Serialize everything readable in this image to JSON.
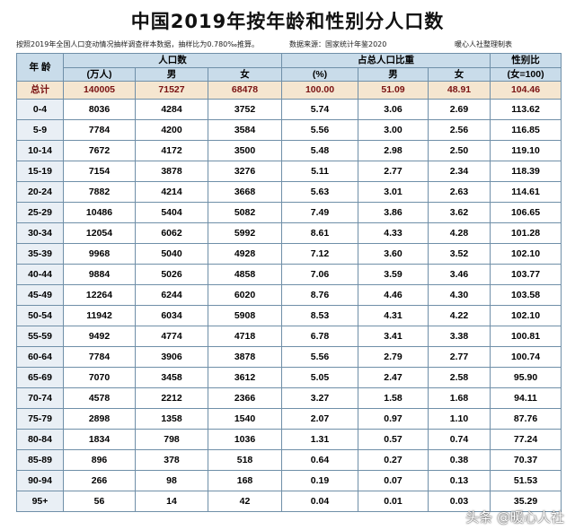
{
  "title": "中国2019年按年龄和性别分人口数",
  "note": "按照2019年全国人口变动情况抽样调查样本数据，抽样比为0.780‰推算。",
  "source": "数据来源：国家统计年鉴2020",
  "author": "暖心人社整理制表",
  "watermark": "头条 @暖心人社",
  "header": {
    "age": "年  龄",
    "population": "人口数",
    "share": "占总人口比重",
    "ratio": "性别比",
    "pop_unit": "(万人)",
    "male": "男",
    "female": "女",
    "share_unit": "(%)",
    "ratio_unit": "(女=100)"
  },
  "total": {
    "age": "总计",
    "pop": "140005",
    "male": "71527",
    "female": "68478",
    "share": "100.00",
    "male_share": "51.09",
    "female_share": "48.91",
    "ratio": "104.46"
  },
  "rows": [
    {
      "age": "0-4",
      "pop": "8036",
      "male": "4284",
      "female": "3752",
      "share": "5.74",
      "male_share": "3.06",
      "female_share": "2.69",
      "ratio": "113.62"
    },
    {
      "age": "5-9",
      "pop": "7784",
      "male": "4200",
      "female": "3584",
      "share": "5.56",
      "male_share": "3.00",
      "female_share": "2.56",
      "ratio": "116.85"
    },
    {
      "age": "10-14",
      "pop": "7672",
      "male": "4172",
      "female": "3500",
      "share": "5.48",
      "male_share": "2.98",
      "female_share": "2.50",
      "ratio": "119.10"
    },
    {
      "age": "15-19",
      "pop": "7154",
      "male": "3878",
      "female": "3276",
      "share": "5.11",
      "male_share": "2.77",
      "female_share": "2.34",
      "ratio": "118.39"
    },
    {
      "age": "20-24",
      "pop": "7882",
      "male": "4214",
      "female": "3668",
      "share": "5.63",
      "male_share": "3.01",
      "female_share": "2.63",
      "ratio": "114.61"
    },
    {
      "age": "25-29",
      "pop": "10486",
      "male": "5404",
      "female": "5082",
      "share": "7.49",
      "male_share": "3.86",
      "female_share": "3.62",
      "ratio": "106.65"
    },
    {
      "age": "30-34",
      "pop": "12054",
      "male": "6062",
      "female": "5992",
      "share": "8.61",
      "male_share": "4.33",
      "female_share": "4.28",
      "ratio": "101.28"
    },
    {
      "age": "35-39",
      "pop": "9968",
      "male": "5040",
      "female": "4928",
      "share": "7.12",
      "male_share": "3.60",
      "female_share": "3.52",
      "ratio": "102.10"
    },
    {
      "age": "40-44",
      "pop": "9884",
      "male": "5026",
      "female": "4858",
      "share": "7.06",
      "male_share": "3.59",
      "female_share": "3.46",
      "ratio": "103.77"
    },
    {
      "age": "45-49",
      "pop": "12264",
      "male": "6244",
      "female": "6020",
      "share": "8.76",
      "male_share": "4.46",
      "female_share": "4.30",
      "ratio": "103.58"
    },
    {
      "age": "50-54",
      "pop": "11942",
      "male": "6034",
      "female": "5908",
      "share": "8.53",
      "male_share": "4.31",
      "female_share": "4.22",
      "ratio": "102.10"
    },
    {
      "age": "55-59",
      "pop": "9492",
      "male": "4774",
      "female": "4718",
      "share": "6.78",
      "male_share": "3.41",
      "female_share": "3.38",
      "ratio": "100.81"
    },
    {
      "age": "60-64",
      "pop": "7784",
      "male": "3906",
      "female": "3878",
      "share": "5.56",
      "male_share": "2.79",
      "female_share": "2.77",
      "ratio": "100.74"
    },
    {
      "age": "65-69",
      "pop": "7070",
      "male": "3458",
      "female": "3612",
      "share": "5.05",
      "male_share": "2.47",
      "female_share": "2.58",
      "ratio": "95.90"
    },
    {
      "age": "70-74",
      "pop": "4578",
      "male": "2212",
      "female": "2366",
      "share": "3.27",
      "male_share": "1.58",
      "female_share": "1.68",
      "ratio": "94.11"
    },
    {
      "age": "75-79",
      "pop": "2898",
      "male": "1358",
      "female": "1540",
      "share": "2.07",
      "male_share": "0.97",
      "female_share": "1.10",
      "ratio": "87.76"
    },
    {
      "age": "80-84",
      "pop": "1834",
      "male": "798",
      "female": "1036",
      "share": "1.31",
      "male_share": "0.57",
      "female_share": "0.74",
      "ratio": "77.24"
    },
    {
      "age": "85-89",
      "pop": "896",
      "male": "378",
      "female": "518",
      "share": "0.64",
      "male_share": "0.27",
      "female_share": "0.38",
      "ratio": "70.37"
    },
    {
      "age": "90-94",
      "pop": "266",
      "male": "98",
      "female": "168",
      "share": "0.19",
      "male_share": "0.07",
      "female_share": "0.13",
      "ratio": "51.53"
    },
    {
      "age": "95+",
      "pop": "56",
      "male": "14",
      "female": "42",
      "share": "0.04",
      "male_share": "0.01",
      "female_share": "0.03",
      "ratio": "35.29"
    }
  ]
}
